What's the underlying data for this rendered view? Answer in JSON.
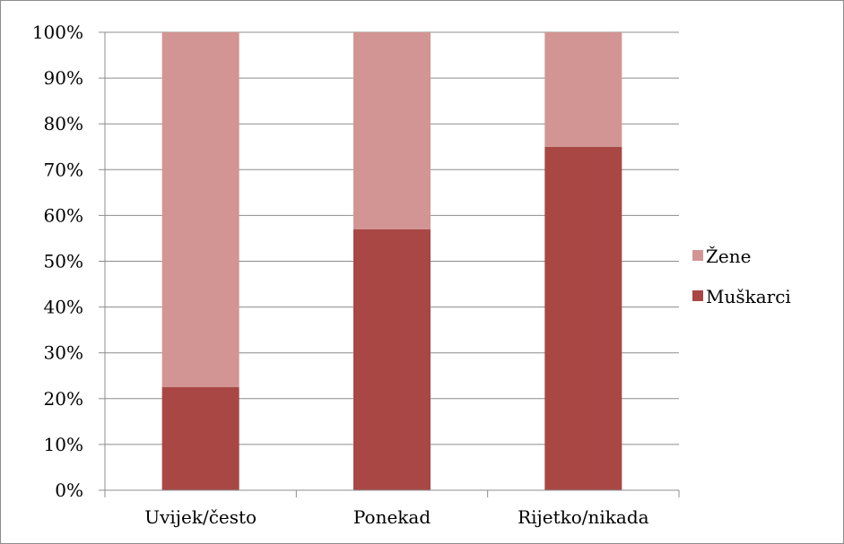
{
  "chart_data": {
    "type": "bar",
    "stacked": true,
    "percent_stacked": true,
    "categories": [
      "Uvijek/često",
      "Ponekad",
      "Rijetko/nikada"
    ],
    "series": [
      {
        "name": "Muškarci",
        "values": [
          22.5,
          57,
          75
        ],
        "color": "#a84744"
      },
      {
        "name": "Žene",
        "values": [
          77.5,
          43,
          25
        ],
        "color": "#d29593"
      }
    ],
    "ylim": [
      0,
      100
    ],
    "y_ticks": [
      "0%",
      "10%",
      "20%",
      "30%",
      "40%",
      "50%",
      "60%",
      "70%",
      "80%",
      "90%",
      "100%"
    ],
    "y_tick_values": [
      0,
      10,
      20,
      30,
      40,
      50,
      60,
      70,
      80,
      90,
      100
    ],
    "grid": true,
    "legend_position": "right",
    "legend_order": [
      "Žene",
      "Muškarci"
    ],
    "title": "",
    "xlabel": "",
    "ylabel": ""
  }
}
